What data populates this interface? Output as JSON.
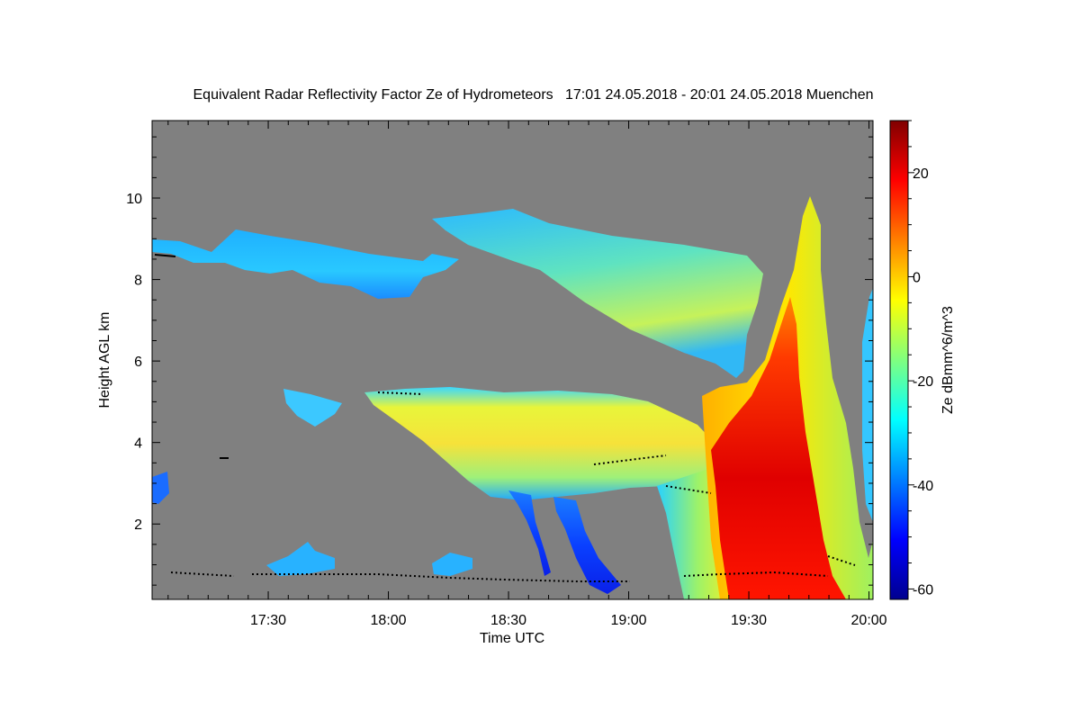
{
  "chart_data": {
    "type": "heatmap",
    "title": "Equivalent Radar Reflectivity Factor Ze of Hydrometeors   17:01 24.05.2018 - 20:01 24.05.2018 Muenchen",
    "xlabel": "Time UTC",
    "ylabel": "Height AGL km",
    "x_tick_labels": [
      "17:30",
      "18:00",
      "18:30",
      "19:00",
      "19:30",
      "20:00"
    ],
    "x_tick_values_min": [
      29,
      59,
      89,
      119,
      149,
      179
    ],
    "xlim_min": [
      0,
      180
    ],
    "y_tick_labels": [
      "2",
      "4",
      "6",
      "8",
      "10"
    ],
    "y_tick_values": [
      2,
      4,
      6,
      8,
      10
    ],
    "ylim": [
      0.15,
      11.9
    ],
    "colorbar": {
      "label": "Ze dBmm^6/m^3",
      "range": [
        -62,
        30
      ],
      "tick_labels": [
        "-60",
        "-40",
        "-20",
        "0",
        "20"
      ],
      "tick_values": [
        -60,
        -40,
        -20,
        0,
        20
      ],
      "colormap": "jet"
    },
    "background_color": "#808080",
    "regions": [
      {
        "name": "upper cirrus layer left",
        "x_range_min": [
          0,
          75
        ],
        "height_km": [
          7.6,
          9.5
        ],
        "ze_dbz": -30
      },
      {
        "name": "upper cirrus layer right",
        "x_range_min": [
          70,
          150
        ],
        "height_km": [
          6.1,
          9.9
        ],
        "ze_dbz": -20
      },
      {
        "name": "mid-level cloud layer",
        "x_range_min": [
          55,
          135
        ],
        "height_km": [
          2.5,
          5.3
        ],
        "ze_dbz": -8
      },
      {
        "name": "fall streaks",
        "x_range_min": [
          88,
          115
        ],
        "height_km": [
          0.4,
          3.2
        ],
        "ze_dbz": -45
      },
      {
        "name": "convective cell",
        "x_range_min": [
          133,
          180
        ],
        "height_km": [
          0.15,
          10.2
        ],
        "ze_dbz": 20
      },
      {
        "name": "low-level cloud base",
        "x_range_min": [
          5,
          178
        ],
        "height_km": [
          0.6,
          0.9
        ],
        "ze_dbz": null
      }
    ]
  }
}
